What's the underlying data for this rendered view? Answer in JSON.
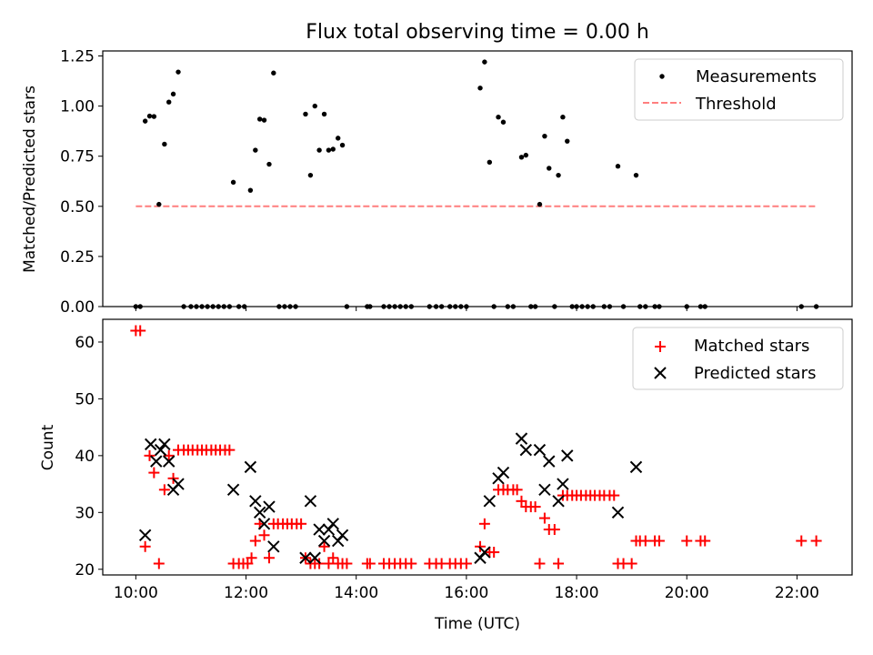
{
  "colors": {
    "measurements": "#000000",
    "threshold": "#ff7f7f",
    "matched": "#ff0000",
    "predicted": "#000000"
  },
  "chart_data": [
    {
      "type": "scatter",
      "title": "Flux total observing time = 0.00 h",
      "xlabel": "",
      "ylabel": "Matched/Predicted stars",
      "xlim": [
        9.4,
        23.0
      ],
      "ylim": [
        0,
        1.275
      ],
      "yticks": [
        0,
        0.25,
        0.5,
        0.75,
        1.0,
        1.25
      ],
      "ytick_labels": [
        "0.00",
        "0.25",
        "0.50",
        "0.75",
        "1.00",
        "1.25"
      ],
      "grid": false,
      "legend": "upper right",
      "series": [
        {
          "name": "Measurements",
          "kind": "points",
          "points": [
            [
              10.0,
              0
            ],
            [
              10.08,
              0
            ],
            [
              10.17,
              0.925
            ],
            [
              10.25,
              0.95
            ],
            [
              10.33,
              0.948
            ],
            [
              10.42,
              0.51
            ],
            [
              10.52,
              0.81
            ],
            [
              10.6,
              1.02
            ],
            [
              10.68,
              1.06
            ],
            [
              10.77,
              1.17
            ],
            [
              10.87,
              0
            ],
            [
              11.0,
              0
            ],
            [
              11.1,
              0
            ],
            [
              11.2,
              0
            ],
            [
              11.3,
              0
            ],
            [
              11.4,
              0
            ],
            [
              11.5,
              0
            ],
            [
              11.6,
              0
            ],
            [
              11.7,
              0
            ],
            [
              11.77,
              0.62
            ],
            [
              11.87,
              0
            ],
            [
              11.97,
              0
            ],
            [
              12.08,
              0.58
            ],
            [
              12.17,
              0.78
            ],
            [
              12.25,
              0.935
            ],
            [
              12.33,
              0.93
            ],
            [
              12.42,
              0.71
            ],
            [
              12.5,
              1.165
            ],
            [
              12.6,
              0
            ],
            [
              12.7,
              0
            ],
            [
              12.8,
              0
            ],
            [
              12.9,
              0
            ],
            [
              13.08,
              0.96
            ],
            [
              13.17,
              0.655
            ],
            [
              13.25,
              1.0
            ],
            [
              13.33,
              0.78
            ],
            [
              13.42,
              0.96
            ],
            [
              13.5,
              0.78
            ],
            [
              13.58,
              0.785
            ],
            [
              13.67,
              0.84
            ],
            [
              13.75,
              0.805
            ],
            [
              13.83,
              0
            ],
            [
              14.2,
              0
            ],
            [
              14.25,
              0
            ],
            [
              14.5,
              0
            ],
            [
              14.6,
              0
            ],
            [
              14.7,
              0
            ],
            [
              14.8,
              0
            ],
            [
              14.9,
              0
            ],
            [
              15.0,
              0
            ],
            [
              15.33,
              0
            ],
            [
              15.45,
              0
            ],
            [
              15.55,
              0
            ],
            [
              15.7,
              0
            ],
            [
              15.8,
              0
            ],
            [
              15.9,
              0
            ],
            [
              16.0,
              0
            ],
            [
              16.25,
              1.09
            ],
            [
              16.33,
              1.22
            ],
            [
              16.42,
              0.72
            ],
            [
              16.5,
              0
            ],
            [
              16.58,
              0.945
            ],
            [
              16.67,
              0.92
            ],
            [
              16.75,
              0
            ],
            [
              16.85,
              0
            ],
            [
              17.0,
              0.745
            ],
            [
              17.08,
              0.755
            ],
            [
              17.17,
              0
            ],
            [
              17.25,
              0
            ],
            [
              17.33,
              0.51
            ],
            [
              17.42,
              0.85
            ],
            [
              17.5,
              0.69
            ],
            [
              17.6,
              0
            ],
            [
              17.67,
              0.655
            ],
            [
              17.75,
              0.945
            ],
            [
              17.83,
              0.825
            ],
            [
              17.92,
              0
            ],
            [
              18.0,
              0
            ],
            [
              18.1,
              0
            ],
            [
              18.2,
              0
            ],
            [
              18.3,
              0
            ],
            [
              18.5,
              0
            ],
            [
              18.6,
              0
            ],
            [
              18.75,
              0.7
            ],
            [
              18.85,
              0
            ],
            [
              19.08,
              0.655
            ],
            [
              19.15,
              0
            ],
            [
              19.25,
              0
            ],
            [
              19.42,
              0
            ],
            [
              19.5,
              0
            ],
            [
              20.0,
              0
            ],
            [
              20.25,
              0
            ],
            [
              20.33,
              0
            ],
            [
              22.08,
              0
            ],
            [
              22.35,
              0
            ]
          ]
        },
        {
          "name": "Threshold",
          "kind": "dashed-line",
          "points": [
            [
              10.0,
              0.5
            ],
            [
              22.35,
              0.5
            ]
          ]
        }
      ]
    },
    {
      "type": "scatter",
      "title": "",
      "xlabel": "Time (UTC)",
      "ylabel": "Count",
      "xlim": [
        9.4,
        23.0
      ],
      "ylim": [
        19.0,
        64.0
      ],
      "yticks": [
        20,
        30,
        40,
        50,
        60
      ],
      "ytick_labels": [
        "20",
        "30",
        "40",
        "50",
        "60"
      ],
      "xticks": [
        10,
        12,
        14,
        16,
        18,
        20,
        22
      ],
      "xtick_labels": [
        "10:00",
        "12:00",
        "14:00",
        "16:00",
        "18:00",
        "20:00",
        "22:00"
      ],
      "grid": false,
      "legend": "upper right",
      "series": [
        {
          "name": "Matched stars",
          "kind": "plus",
          "points": [
            [
              10.0,
              62
            ],
            [
              10.08,
              62
            ],
            [
              10.17,
              24
            ],
            [
              10.25,
              40
            ],
            [
              10.33,
              37
            ],
            [
              10.42,
              21
            ],
            [
              10.52,
              34
            ],
            [
              10.6,
              40
            ],
            [
              10.68,
              36
            ],
            [
              10.77,
              41
            ],
            [
              10.87,
              41
            ],
            [
              10.95,
              41
            ],
            [
              11.03,
              41
            ],
            [
              11.12,
              41
            ],
            [
              11.2,
              41
            ],
            [
              11.28,
              41
            ],
            [
              11.37,
              41
            ],
            [
              11.45,
              41
            ],
            [
              11.53,
              41
            ],
            [
              11.62,
              41
            ],
            [
              11.7,
              41
            ],
            [
              11.77,
              21
            ],
            [
              11.87,
              21
            ],
            [
              11.95,
              21
            ],
            [
              12.03,
              21
            ],
            [
              12.1,
              22
            ],
            [
              12.17,
              25
            ],
            [
              12.25,
              28
            ],
            [
              12.33,
              26
            ],
            [
              12.42,
              22
            ],
            [
              12.5,
              28
            ],
            [
              12.58,
              28
            ],
            [
              12.67,
              28
            ],
            [
              12.75,
              28
            ],
            [
              12.83,
              28
            ],
            [
              12.92,
              28
            ],
            [
              13.0,
              28
            ],
            [
              13.08,
              22
            ],
            [
              13.17,
              21
            ],
            [
              13.25,
              21
            ],
            [
              13.33,
              21
            ],
            [
              13.42,
              24
            ],
            [
              13.5,
              21
            ],
            [
              13.58,
              22
            ],
            [
              13.67,
              21
            ],
            [
              13.75,
              21
            ],
            [
              13.83,
              21
            ],
            [
              14.2,
              21
            ],
            [
              14.25,
              21
            ],
            [
              14.5,
              21
            ],
            [
              14.6,
              21
            ],
            [
              14.7,
              21
            ],
            [
              14.8,
              21
            ],
            [
              14.9,
              21
            ],
            [
              15.0,
              21
            ],
            [
              15.33,
              21
            ],
            [
              15.45,
              21
            ],
            [
              15.55,
              21
            ],
            [
              15.7,
              21
            ],
            [
              15.8,
              21
            ],
            [
              15.9,
              21
            ],
            [
              16.0,
              21
            ],
            [
              16.25,
              24
            ],
            [
              16.33,
              28
            ],
            [
              16.42,
              23
            ],
            [
              16.5,
              23
            ],
            [
              16.58,
              34
            ],
            [
              16.67,
              34
            ],
            [
              16.75,
              34
            ],
            [
              16.85,
              34
            ],
            [
              16.92,
              34
            ],
            [
              17.0,
              32
            ],
            [
              17.08,
              31
            ],
            [
              17.17,
              31
            ],
            [
              17.25,
              31
            ],
            [
              17.33,
              21
            ],
            [
              17.42,
              29
            ],
            [
              17.5,
              27
            ],
            [
              17.6,
              27
            ],
            [
              17.67,
              21
            ],
            [
              17.75,
              33
            ],
            [
              17.83,
              33
            ],
            [
              17.92,
              33
            ],
            [
              18.0,
              33
            ],
            [
              18.08,
              33
            ],
            [
              18.17,
              33
            ],
            [
              18.25,
              33
            ],
            [
              18.33,
              33
            ],
            [
              18.42,
              33
            ],
            [
              18.5,
              33
            ],
            [
              18.6,
              33
            ],
            [
              18.68,
              33
            ],
            [
              18.75,
              21
            ],
            [
              18.85,
              21
            ],
            [
              19.0,
              21
            ],
            [
              19.08,
              25
            ],
            [
              19.15,
              25
            ],
            [
              19.25,
              25
            ],
            [
              19.42,
              25
            ],
            [
              19.5,
              25
            ],
            [
              20.0,
              25
            ],
            [
              20.25,
              25
            ],
            [
              20.33,
              25
            ],
            [
              22.08,
              25
            ],
            [
              22.35,
              25
            ]
          ]
        },
        {
          "name": "Predicted stars",
          "kind": "x",
          "points": [
            [
              10.17,
              26
            ],
            [
              10.27,
              42
            ],
            [
              10.37,
              39
            ],
            [
              10.45,
              41
            ],
            [
              10.52,
              42
            ],
            [
              10.6,
              39
            ],
            [
              10.68,
              34
            ],
            [
              10.77,
              35
            ],
            [
              11.77,
              34
            ],
            [
              12.08,
              38
            ],
            [
              12.17,
              32
            ],
            [
              12.25,
              30
            ],
            [
              12.33,
              28
            ],
            [
              12.42,
              31
            ],
            [
              12.5,
              24
            ],
            [
              13.08,
              22
            ],
            [
              13.17,
              32
            ],
            [
              13.25,
              22
            ],
            [
              13.33,
              27
            ],
            [
              13.42,
              25
            ],
            [
              13.5,
              27
            ],
            [
              13.58,
              28
            ],
            [
              13.67,
              25
            ],
            [
              13.75,
              26
            ],
            [
              16.25,
              22
            ],
            [
              16.33,
              23
            ],
            [
              16.42,
              32
            ],
            [
              16.58,
              36
            ],
            [
              16.67,
              37
            ],
            [
              17.0,
              43
            ],
            [
              17.08,
              41
            ],
            [
              17.33,
              41
            ],
            [
              17.42,
              34
            ],
            [
              17.5,
              39
            ],
            [
              17.67,
              32
            ],
            [
              17.75,
              35
            ],
            [
              17.83,
              40
            ],
            [
              18.75,
              30
            ],
            [
              19.08,
              38
            ]
          ]
        }
      ]
    }
  ]
}
